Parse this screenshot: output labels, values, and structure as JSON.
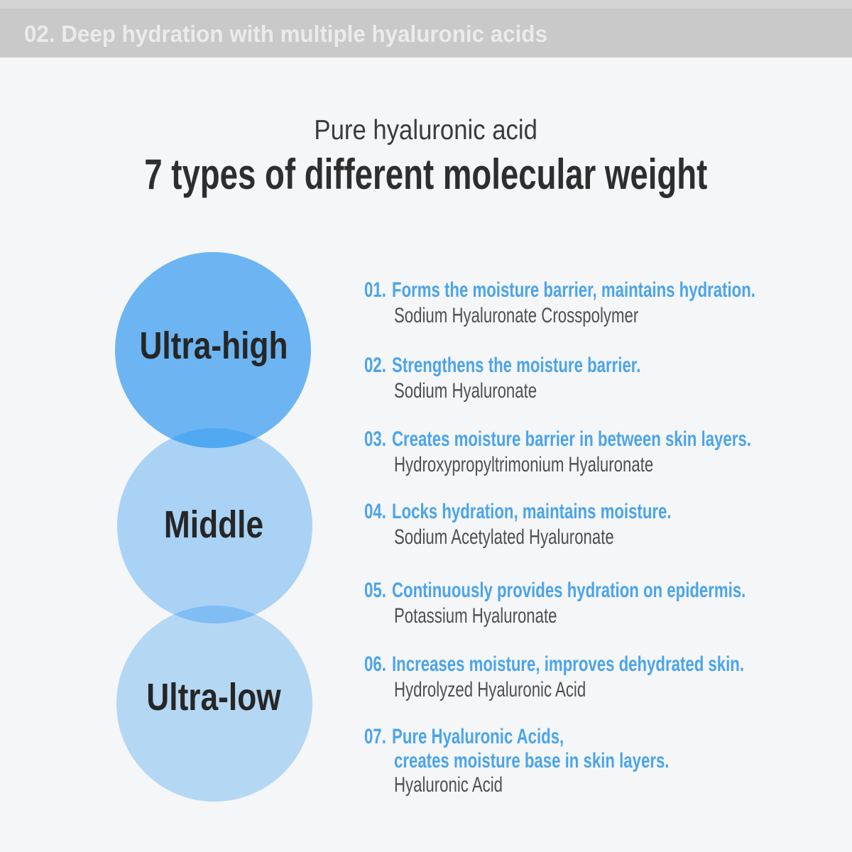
{
  "theme": {
    "bg": "#f5f6f7",
    "strip": "#d4d4d4",
    "bar-bg": "#c9c9c9",
    "bar-text": "#ebebeb",
    "title-color": "#2e2e2e",
    "subtitle-color": "#3b3b3b",
    "label-color": "#262626",
    "heading-blue": "#4ba4eb",
    "ingredient-gray": "#4f4f4f"
  },
  "header": {
    "label": "02. Deep hydration with multiple hyaluronic acids"
  },
  "title_block": {
    "subtitle": "Pure hyaluronic acid",
    "title": "7 types of different molecular weight"
  },
  "diagram": {
    "base_blue": "#1e90f0",
    "circles": [
      {
        "label": "Ultra-high",
        "color": "rgba(30,144,240,0.64)"
      },
      {
        "label": "Middle",
        "color": "rgba(30,144,240,0.35)"
      },
      {
        "label": "Ultra-low",
        "color": "rgba(30,144,240,0.30)"
      }
    ]
  },
  "items": [
    {
      "number": "01.",
      "heading": "Forms the moisture barrier, maintains hydration.",
      "ingredient": "Sodium Hyaluronate Crosspolymer"
    },
    {
      "number": "02.",
      "heading": "Strengthens the moisture barrier.",
      "ingredient": "Sodium Hyaluronate"
    },
    {
      "number": "03.",
      "heading": "Creates moisture barrier in between skin layers.",
      "ingredient": "Hydroxypropyltrimonium Hyaluronate"
    },
    {
      "number": "04.",
      "heading": "Locks hydration, maintains moisture.",
      "ingredient": "Sodium Acetylated Hyaluronate"
    },
    {
      "number": "05.",
      "heading": "Continuously provides hydration on epidermis.",
      "ingredient": "Potassium Hyaluronate"
    },
    {
      "number": "06.",
      "heading": "Increases moisture, improves dehydrated skin.",
      "ingredient": "Hydrolyzed Hyaluronic Acid"
    },
    {
      "number": "07.",
      "heading": "Pure Hyaluronic Acids,",
      "heading_line2": "creates moisture base in skin layers.",
      "ingredient": "Hyaluronic Acid"
    }
  ]
}
